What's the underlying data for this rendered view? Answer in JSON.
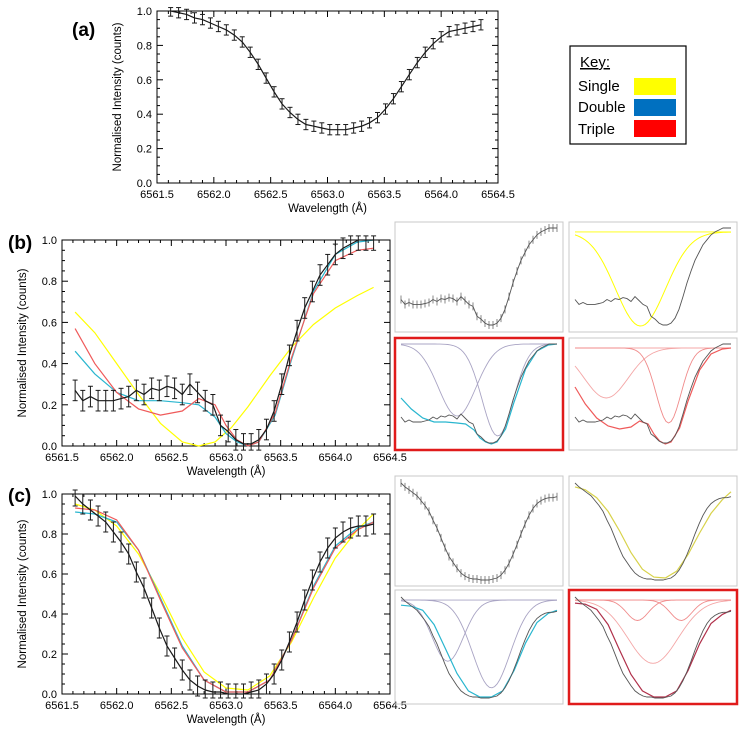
{
  "colors": {
    "data": "#1a1a1a",
    "single": "#ffff00",
    "double": "#1f8fd6",
    "double_line": "#29b6cf",
    "triple": "#ff1a1a",
    "triple_line": "#ef5a5a",
    "highlight": "#e01b1b"
  },
  "key": {
    "title": "Key:",
    "items": [
      {
        "label": "Single",
        "color": "#ffff00"
      },
      {
        "label": "Double",
        "color": "#0070c0"
      },
      {
        "label": "Triple",
        "color": "#ff0000"
      }
    ]
  },
  "chart_data": [
    {
      "panel": "(a)",
      "type": "line",
      "xlabel": "Wavelength (Å)",
      "ylabel": "Normalised Intensity (counts)",
      "xlim": [
        6561.5,
        6564.5
      ],
      "ylim": [
        0.0,
        1.0
      ],
      "xticks": [
        "6561.5",
        "6562.0",
        "6562.5",
        "6563.0",
        "6563.5",
        "6564.0",
        "6564.5"
      ],
      "yticks": [
        "0.0",
        "0.2",
        "0.4",
        "0.6",
        "0.8",
        "1.0"
      ],
      "series": [
        {
          "x": [
            6561.62,
            6561.69,
            6561.76,
            6561.83,
            6561.9,
            6561.97,
            6562.04,
            6562.11,
            6562.18,
            6562.25,
            6562.32,
            6562.39,
            6562.46,
            6562.53,
            6562.6,
            6562.67,
            6562.74,
            6562.81,
            6562.88,
            6562.95,
            6563.02,
            6563.09,
            6563.16,
            6563.23,
            6563.3,
            6563.37,
            6563.44,
            6563.51,
            6563.58,
            6563.65,
            6563.72,
            6563.79,
            6563.86,
            6563.93,
            6564.0,
            6564.07,
            6564.14,
            6564.21,
            6564.28,
            6564.35
          ],
          "y": [
            1.0,
            0.99,
            0.98,
            0.96,
            0.95,
            0.93,
            0.91,
            0.89,
            0.86,
            0.82,
            0.76,
            0.69,
            0.61,
            0.53,
            0.46,
            0.41,
            0.37,
            0.34,
            0.33,
            0.32,
            0.31,
            0.31,
            0.31,
            0.32,
            0.33,
            0.35,
            0.38,
            0.43,
            0.49,
            0.56,
            0.63,
            0.7,
            0.76,
            0.81,
            0.85,
            0.88,
            0.89,
            0.9,
            0.91,
            0.92
          ],
          "err": 0.03
        }
      ]
    },
    {
      "panel": "(b)",
      "type": "line",
      "xlabel": "Wavelength (Å)",
      "ylabel": "Normalised Intensity (counts)",
      "xlim": [
        6561.5,
        6564.5
      ],
      "ylim": [
        0.0,
        1.0
      ],
      "xticks": [
        "6561.5",
        "6562.0",
        "6562.5",
        "6563.0",
        "6563.5",
        "6564.0",
        "6564.5"
      ],
      "yticks": [
        "0.0",
        "0.2",
        "0.4",
        "0.6",
        "0.8",
        "1.0"
      ],
      "series": [
        {
          "role": "data",
          "x": [
            6561.62,
            6561.69,
            6561.76,
            6561.83,
            6561.9,
            6561.97,
            6562.04,
            6562.11,
            6562.18,
            6562.25,
            6562.32,
            6562.39,
            6562.46,
            6562.53,
            6562.6,
            6562.67,
            6562.74,
            6562.81,
            6562.88,
            6562.95,
            6563.02,
            6563.09,
            6563.16,
            6563.23,
            6563.3,
            6563.37,
            6563.44,
            6563.51,
            6563.58,
            6563.65,
            6563.72,
            6563.79,
            6563.86,
            6563.93,
            6564.0,
            6564.07,
            6564.14,
            6564.21,
            6564.28,
            6564.35
          ],
          "y": [
            0.27,
            0.22,
            0.24,
            0.22,
            0.22,
            0.22,
            0.23,
            0.24,
            0.27,
            0.25,
            0.28,
            0.27,
            0.29,
            0.28,
            0.25,
            0.3,
            0.26,
            0.22,
            0.2,
            0.1,
            0.07,
            0.03,
            0.01,
            0.01,
            0.03,
            0.08,
            0.17,
            0.3,
            0.44,
            0.56,
            0.67,
            0.75,
            0.83,
            0.88,
            0.93,
            0.96,
            0.98,
            1.0,
            1.0,
            1.0
          ],
          "err": 0.05
        },
        {
          "role": "single",
          "x": [
            6561.62,
            6561.8,
            6562.0,
            6562.2,
            6562.4,
            6562.6,
            6562.75,
            6562.9,
            6563.05,
            6563.2,
            6563.4,
            6563.6,
            6563.8,
            6564.0,
            6564.2,
            6564.35
          ],
          "y": [
            0.65,
            0.55,
            0.4,
            0.25,
            0.11,
            0.02,
            0.0,
            0.02,
            0.09,
            0.19,
            0.34,
            0.48,
            0.59,
            0.67,
            0.73,
            0.77
          ]
        },
        {
          "role": "double",
          "x": [
            6561.62,
            6561.8,
            6562.0,
            6562.2,
            6562.4,
            6562.6,
            6562.75,
            6562.9,
            6563.0,
            6563.1,
            6563.2,
            6563.3,
            6563.45,
            6563.6,
            6563.8,
            6564.0,
            6564.2,
            6564.35
          ],
          "y": [
            0.46,
            0.35,
            0.26,
            0.22,
            0.22,
            0.21,
            0.2,
            0.14,
            0.06,
            0.02,
            0.0,
            0.02,
            0.15,
            0.42,
            0.75,
            0.93,
            0.99,
            1.0
          ]
        },
        {
          "role": "triple",
          "x": [
            6561.62,
            6561.8,
            6562.0,
            6562.2,
            6562.4,
            6562.6,
            6562.75,
            6562.9,
            6563.0,
            6563.1,
            6563.2,
            6563.3,
            6563.45,
            6563.6,
            6563.8,
            6564.0,
            6564.2,
            6564.35
          ],
          "y": [
            0.57,
            0.4,
            0.26,
            0.18,
            0.15,
            0.17,
            0.23,
            0.2,
            0.1,
            0.03,
            0.0,
            0.02,
            0.16,
            0.43,
            0.74,
            0.9,
            0.95,
            0.96
          ]
        }
      ]
    },
    {
      "panel": "(c)",
      "type": "line",
      "xlabel": "Wavelength (Å)",
      "ylabel": "Normalised Intensity (counts)",
      "xlim": [
        6561.5,
        6564.5
      ],
      "ylim": [
        0.0,
        1.0
      ],
      "xticks": [
        "6561.5",
        "6562.0",
        "6562.5",
        "6563.0",
        "6563.5",
        "6564.0",
        "6564.5"
      ],
      "yticks": [
        "0.0",
        "0.2",
        "0.4",
        "0.6",
        "0.8",
        "1.0"
      ],
      "series": [
        {
          "role": "data",
          "x": [
            6561.62,
            6561.69,
            6561.76,
            6561.83,
            6561.9,
            6561.97,
            6562.04,
            6562.11,
            6562.18,
            6562.25,
            6562.32,
            6562.39,
            6562.46,
            6562.53,
            6562.6,
            6562.67,
            6562.74,
            6562.81,
            6562.88,
            6562.95,
            6563.02,
            6563.09,
            6563.16,
            6563.23,
            6563.3,
            6563.37,
            6563.44,
            6563.51,
            6563.58,
            6563.65,
            6563.72,
            6563.79,
            6563.86,
            6563.93,
            6564.0,
            6564.07,
            6564.14,
            6564.21,
            6564.28,
            6564.35
          ],
          "y": [
            0.99,
            0.95,
            0.92,
            0.89,
            0.86,
            0.81,
            0.76,
            0.7,
            0.61,
            0.53,
            0.43,
            0.33,
            0.24,
            0.18,
            0.12,
            0.07,
            0.04,
            0.02,
            0.01,
            0.01,
            0.0,
            0.0,
            0.0,
            0.01,
            0.02,
            0.05,
            0.1,
            0.17,
            0.26,
            0.36,
            0.47,
            0.57,
            0.66,
            0.73,
            0.78,
            0.81,
            0.83,
            0.84,
            0.84,
            0.85
          ],
          "err": 0.05
        },
        {
          "role": "single",
          "x": [
            6561.62,
            6561.8,
            6562.0,
            6562.2,
            6562.4,
            6562.6,
            6562.8,
            6563.0,
            6563.2,
            6563.4,
            6563.6,
            6563.8,
            6564.0,
            6564.2,
            6564.35
          ],
          "y": [
            0.95,
            0.92,
            0.84,
            0.7,
            0.5,
            0.28,
            0.11,
            0.03,
            0.02,
            0.09,
            0.26,
            0.48,
            0.68,
            0.82,
            0.9
          ]
        },
        {
          "role": "double",
          "x": [
            6561.62,
            6561.8,
            6562.0,
            6562.2,
            6562.4,
            6562.6,
            6562.8,
            6563.0,
            6563.2,
            6563.4,
            6563.6,
            6563.8,
            6564.0,
            6564.2,
            6564.35
          ],
          "y": [
            0.91,
            0.9,
            0.86,
            0.72,
            0.48,
            0.24,
            0.07,
            0.01,
            0.01,
            0.07,
            0.27,
            0.54,
            0.74,
            0.83,
            0.86
          ]
        },
        {
          "role": "triple",
          "x": [
            6561.62,
            6561.8,
            6562.0,
            6562.2,
            6562.4,
            6562.6,
            6562.8,
            6563.0,
            6563.2,
            6563.4,
            6563.6,
            6563.8,
            6564.0,
            6564.2,
            6564.35
          ],
          "y": [
            0.93,
            0.92,
            0.87,
            0.72,
            0.47,
            0.23,
            0.07,
            0.01,
            0.01,
            0.07,
            0.27,
            0.53,
            0.73,
            0.82,
            0.86
          ]
        }
      ]
    }
  ],
  "insets": {
    "b": [
      {
        "id": "b-data",
        "highlight": false
      },
      {
        "id": "b-single",
        "highlight": false
      },
      {
        "id": "b-double",
        "highlight": true
      },
      {
        "id": "b-triple",
        "highlight": false
      }
    ],
    "c": [
      {
        "id": "c-data",
        "highlight": false
      },
      {
        "id": "c-single",
        "highlight": false
      },
      {
        "id": "c-double",
        "highlight": false
      },
      {
        "id": "c-triple",
        "highlight": true
      }
    ]
  }
}
